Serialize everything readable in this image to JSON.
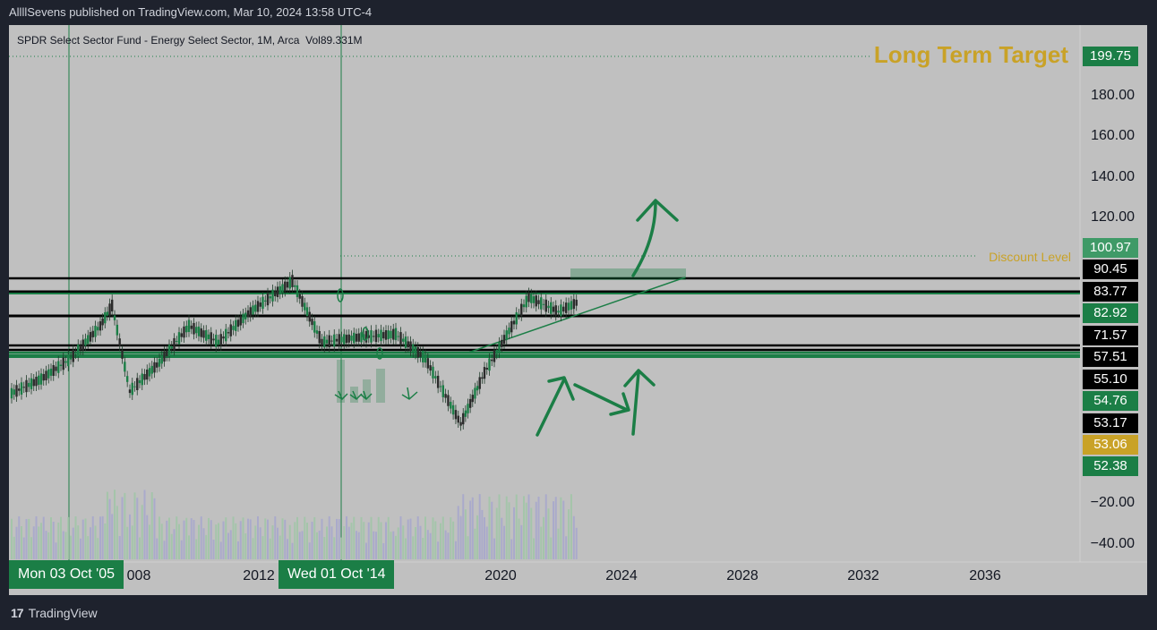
{
  "header": {
    "published": "AllllSevens published on TradingView.com, Mar 10, 2024 13:58 UTC-4"
  },
  "legend": {
    "symbol": "SPDR Select Sector Fund - Energy Select Sector, 1M, Arca",
    "volume": "Vol89.331M"
  },
  "annotations": {
    "long_term_target": "Long Term Target",
    "discount_level": "Discount Level"
  },
  "colors": {
    "green": "#1b7e46",
    "black": "#000000",
    "gold": "#c9a227",
    "panel": "#c0c0c0",
    "background": "#1e222d"
  },
  "price_badges": [
    {
      "label": "199.75",
      "color": "#1b7e46"
    },
    {
      "label": "100.97",
      "color": "#3f9a67"
    },
    {
      "label": "90.45",
      "color": "#000000"
    },
    {
      "label": "83.77",
      "color": "#000000"
    },
    {
      "label": "82.92",
      "color": "#1b7e46"
    },
    {
      "label": "71.57",
      "color": "#000000"
    },
    {
      "label": "57.51",
      "color": "#000000"
    },
    {
      "label": "55.10",
      "color": "#000000"
    },
    {
      "label": "54.76",
      "color": "#1b7e46"
    },
    {
      "label": "53.17",
      "color": "#000000"
    },
    {
      "label": "53.06",
      "color": "#c9a227"
    },
    {
      "label": "52.38",
      "color": "#1b7e46"
    }
  ],
  "y_ticks": [
    "180.00",
    "160.00",
    "140.00",
    "120.00",
    "−20.00",
    "−40.00"
  ],
  "x_ticks": [
    "008",
    "2012",
    "2020",
    "2024",
    "2028",
    "2032",
    "2036"
  ],
  "crosshair_labels": [
    "Mon 03 Oct '05",
    "Wed 01 Oct '14"
  ],
  "footer": {
    "brand": "TradingView"
  },
  "chart_data": {
    "type": "candlestick",
    "timeframe": "1M",
    "title": "SPDR Select Sector Fund - Energy Select Sector, 1M, Arca",
    "x_range": [
      "2005",
      "2036"
    ],
    "x_ticks": [
      "2008",
      "2012",
      "2020",
      "2024",
      "2028",
      "2032",
      "2036"
    ],
    "price_levels": {
      "long_term_target": 199.75,
      "discount_level": 100.97,
      "horizontal_lines": [
        90.45,
        83.77,
        82.92,
        71.57,
        57.51,
        55.1,
        54.76,
        53.17,
        53.06,
        52.38
      ]
    },
    "approx_close": [
      {
        "x": 2005.0,
        "y": 45
      },
      {
        "x": 2006.0,
        "y": 52
      },
      {
        "x": 2007.0,
        "y": 62
      },
      {
        "x": 2008.0,
        "y": 78
      },
      {
        "x": 2008.4,
        "y": 88
      },
      {
        "x": 2009.0,
        "y": 46
      },
      {
        "x": 2010.0,
        "y": 60
      },
      {
        "x": 2011.0,
        "y": 78
      },
      {
        "x": 2012.0,
        "y": 70
      },
      {
        "x": 2013.0,
        "y": 84
      },
      {
        "x": 2014.5,
        "y": 100
      },
      {
        "x": 2015.5,
        "y": 70
      },
      {
        "x": 2016.5,
        "y": 72
      },
      {
        "x": 2018.0,
        "y": 74
      },
      {
        "x": 2019.0,
        "y": 62
      },
      {
        "x": 2020.2,
        "y": 30
      },
      {
        "x": 2021.0,
        "y": 55
      },
      {
        "x": 2022.5,
        "y": 92
      },
      {
        "x": 2023.5,
        "y": 85
      },
      {
        "x": 2024.2,
        "y": 90
      }
    ],
    "volume_label": "Vol89.331M"
  }
}
